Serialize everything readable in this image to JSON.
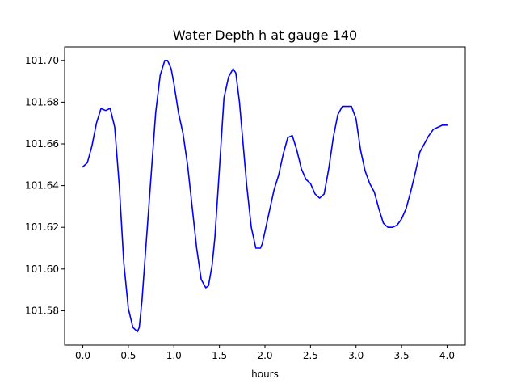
{
  "chart_data": {
    "type": "line",
    "title": "Water Depth h at gauge 140",
    "xlabel": "hours",
    "ylabel": "",
    "xlim": [
      -0.2,
      4.2
    ],
    "ylim": [
      101.5635,
      101.7065
    ],
    "grid": false,
    "legend": "none",
    "x_ticks": [
      "0.0",
      "0.5",
      "1.0",
      "1.5",
      "2.0",
      "2.5",
      "3.0",
      "3.5",
      "4.0"
    ],
    "y_ticks": [
      "101.58",
      "101.60",
      "101.62",
      "101.64",
      "101.66",
      "101.68",
      "101.70"
    ],
    "series": [
      {
        "color": "#0000ff",
        "x": [
          0.0,
          0.05,
          0.1,
          0.15,
          0.2,
          0.25,
          0.3,
          0.35,
          0.4,
          0.45,
          0.5,
          0.55,
          0.6,
          0.62,
          0.65,
          0.7,
          0.75,
          0.8,
          0.85,
          0.9,
          0.93,
          0.97,
          1.0,
          1.05,
          1.1,
          1.15,
          1.2,
          1.25,
          1.3,
          1.35,
          1.38,
          1.42,
          1.45,
          1.5,
          1.55,
          1.6,
          1.65,
          1.68,
          1.72,
          1.75,
          1.8,
          1.85,
          1.9,
          1.95,
          1.97,
          2.0,
          2.05,
          2.1,
          2.15,
          2.2,
          2.25,
          2.3,
          2.35,
          2.4,
          2.45,
          2.5,
          2.55,
          2.6,
          2.65,
          2.7,
          2.75,
          2.8,
          2.85,
          2.9,
          2.95,
          3.0,
          3.05,
          3.1,
          3.15,
          3.2,
          3.25,
          3.3,
          3.35,
          3.4,
          3.45,
          3.5,
          3.55,
          3.6,
          3.65,
          3.7,
          3.75,
          3.8,
          3.85,
          3.9,
          3.95,
          4.0
        ],
        "y": [
          101.649,
          101.651,
          101.659,
          101.67,
          101.677,
          101.676,
          101.677,
          101.668,
          101.64,
          101.603,
          101.581,
          101.572,
          101.57,
          101.572,
          101.585,
          101.615,
          101.645,
          101.675,
          101.693,
          101.7,
          101.7,
          101.696,
          101.689,
          101.675,
          101.665,
          101.65,
          101.63,
          101.61,
          101.595,
          101.591,
          101.592,
          101.602,
          101.615,
          101.648,
          101.682,
          101.692,
          101.696,
          101.694,
          101.68,
          101.665,
          101.64,
          101.62,
          101.61,
          101.61,
          101.612,
          101.618,
          101.628,
          101.638,
          101.645,
          101.655,
          101.663,
          101.664,
          101.657,
          101.648,
          101.643,
          101.641,
          101.636,
          101.634,
          101.636,
          101.648,
          101.663,
          101.674,
          101.678,
          101.678,
          101.678,
          101.672,
          101.657,
          101.647,
          101.641,
          101.637,
          101.629,
          101.622,
          101.62,
          101.62,
          101.621,
          101.624,
          101.629,
          101.637,
          101.646,
          101.656,
          101.66,
          101.664,
          101.667,
          101.668,
          101.669,
          101.669
        ]
      }
    ]
  }
}
